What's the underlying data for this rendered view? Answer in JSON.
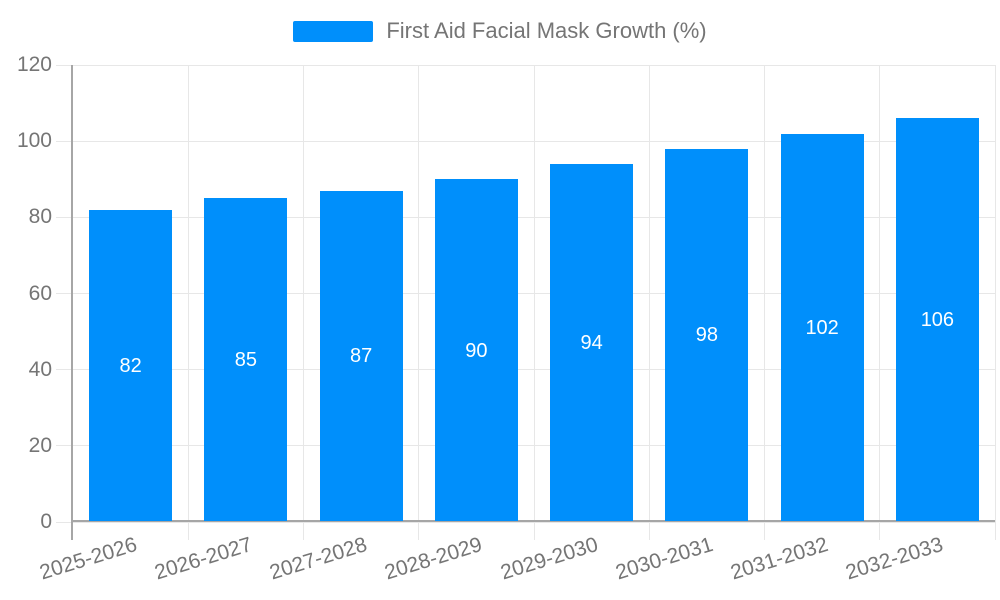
{
  "legend": {
    "label": "First Aid Facial Mask Growth (%)"
  },
  "chart_data": {
    "type": "bar",
    "title": "First Aid Facial Mask Growth (%)",
    "categories": [
      "2025-2026",
      "2026-2027",
      "2027-2028",
      "2028-2029",
      "2029-2030",
      "2030-2031",
      "2031-2032",
      "2032-2033"
    ],
    "values": [
      82,
      85,
      87,
      90,
      94,
      98,
      102,
      106
    ],
    "value_labels": [
      "82",
      "85",
      "87",
      "90",
      "94",
      "98",
      "102",
      "106"
    ],
    "xlabel": "",
    "ylabel": "",
    "ylim": [
      0,
      120
    ],
    "yticks": [
      0,
      20,
      40,
      60,
      80,
      100,
      120
    ],
    "ytick_labels": [
      "0",
      "20",
      "40",
      "60",
      "80",
      "100",
      "120"
    ],
    "grid": true,
    "legend_position": "top",
    "colors": {
      "bar": "#008FFB",
      "value_label": "#ffffff",
      "axis_text": "#757575",
      "grid_line": "#e7e7e7",
      "axis_line": "#a6a6a6"
    }
  }
}
